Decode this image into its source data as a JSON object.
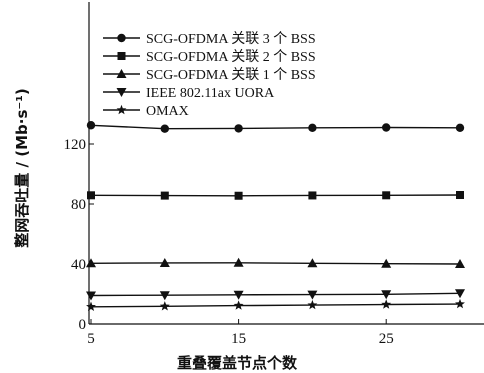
{
  "chart_data": {
    "type": "line",
    "xlabel": "重叠覆盖节点个数",
    "ylabel": "整网吞吐量 / (Mb·s⁻¹)",
    "x": [
      5,
      10,
      15,
      20,
      25,
      30
    ],
    "xlim": [
      5,
      30
    ],
    "ylim": [
      0,
      135
    ],
    "xticks": [
      5,
      15,
      25
    ],
    "yticks": [
      0,
      40,
      80,
      120
    ],
    "legend_position": "upper-left, inside plot",
    "grid": false,
    "series": [
      {
        "name": "SCG-OFDMA 关联 3 个 BSS",
        "marker": "circle",
        "values": [
          132.5,
          130.2,
          130.4,
          130.8,
          131.0,
          130.8
        ]
      },
      {
        "name": "SCG-OFDMA 关联 2 个 BSS",
        "marker": "square",
        "values": [
          85.8,
          85.6,
          85.5,
          85.7,
          85.8,
          86.0
        ]
      },
      {
        "name": "SCG-OFDMA 关联 1 个 BSS",
        "marker": "triangle-up",
        "values": [
          40.5,
          40.7,
          40.8,
          40.5,
          40.2,
          40.0
        ]
      },
      {
        "name": "IEEE 802.11ax UORA",
        "marker": "triangle-down",
        "values": [
          19.0,
          19.2,
          19.5,
          19.6,
          19.8,
          20.5
        ]
      },
      {
        "name": "OMAX",
        "marker": "star",
        "values": [
          11.5,
          11.8,
          12.3,
          12.6,
          13.0,
          13.3
        ]
      }
    ],
    "colors": {
      "line": "#111111",
      "background": "#ffffff"
    }
  }
}
